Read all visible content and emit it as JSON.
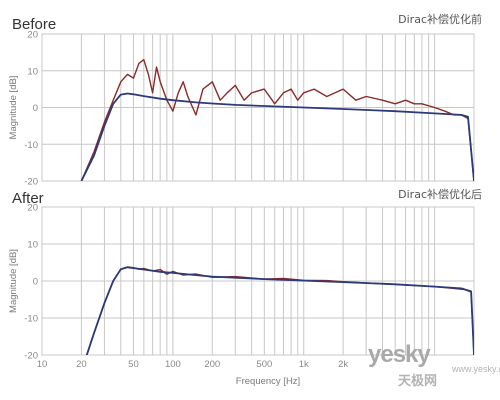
{
  "chart_data": [
    {
      "type": "line",
      "title": "Before",
      "subtitle": "Dirac补偿优化前",
      "xlabel": "",
      "ylabel": "Magnitude [dB]",
      "xscale": "log",
      "xlim": [
        10,
        20000
      ],
      "ylim": [
        -20,
        20
      ],
      "yticks": [
        20,
        10,
        0,
        -10,
        -20
      ],
      "grid": true,
      "series": [
        {
          "color": "#8b2a2a",
          "x": [
            20,
            25,
            30,
            35,
            40,
            45,
            50,
            55,
            60,
            65,
            70,
            75,
            80,
            90,
            100,
            110,
            120,
            130,
            150,
            170,
            200,
            230,
            260,
            300,
            350,
            400,
            500,
            600,
            700,
            800,
            900,
            1000,
            1200,
            1500,
            2000,
            2500,
            3000,
            4000,
            5000,
            6000,
            7000,
            8000,
            10000,
            12000,
            14000,
            16000,
            18000,
            20000
          ],
          "y": [
            -20,
            -12,
            -4,
            2,
            7,
            9,
            8,
            12,
            13,
            9,
            4,
            11,
            7,
            2,
            -1,
            4,
            7,
            3,
            -2,
            5,
            7,
            2,
            4,
            6,
            2,
            4,
            5,
            1,
            4,
            5,
            2,
            4,
            5,
            3,
            5,
            2,
            3,
            2,
            1,
            2,
            1,
            1,
            0,
            -1,
            -2,
            -2,
            -3,
            -20
          ]
        },
        {
          "color": "#2d3a7a",
          "x": [
            20,
            25,
            30,
            35,
            40,
            45,
            50,
            60,
            80,
            100,
            150,
            200,
            300,
            500,
            1000,
            2000,
            5000,
            10000,
            16000,
            18000,
            20000
          ],
          "y": [
            -20,
            -13,
            -5,
            1,
            3.5,
            3.8,
            3.6,
            3.1,
            2.4,
            2,
            1.4,
            1.1,
            0.7,
            0.4,
            0,
            -0.4,
            -1,
            -1.6,
            -2,
            -2.5,
            -20
          ]
        }
      ]
    },
    {
      "type": "line",
      "title": "After",
      "subtitle": "Dirac补偿优化后",
      "xlabel": "Frequency [Hz]",
      "ylabel": "Magnitude [dB]",
      "xscale": "log",
      "xlim": [
        10,
        20000
      ],
      "ylim": [
        -20,
        20
      ],
      "xticks": [
        10,
        20,
        50,
        100,
        200,
        500,
        1000,
        2000
      ],
      "xticklabels": [
        "10",
        "20",
        "50",
        "100",
        "200",
        "500",
        "1k",
        "2k"
      ],
      "yticks": [
        20,
        10,
        0,
        -10,
        -20
      ],
      "grid": true,
      "series": [
        {
          "color": "#8b2a2a",
          "x": [
            22,
            25,
            30,
            35,
            40,
            45,
            50,
            55,
            60,
            70,
            80,
            90,
            100,
            120,
            150,
            200,
            300,
            500,
            700,
            1000,
            1500,
            2000,
            3000,
            5000,
            7000,
            10000,
            14000,
            17000,
            19000,
            20000
          ],
          "y": [
            -20,
            -14,
            -6,
            0,
            3.2,
            3.8,
            3.6,
            3.2,
            3.4,
            2.7,
            3.1,
            1.8,
            2.6,
            1.6,
            1.9,
            1,
            1.2,
            0.5,
            0.7,
            0.2,
            0.1,
            -0.2,
            -0.5,
            -0.9,
            -1.2,
            -1.5,
            -2,
            -2.3,
            -3,
            -20
          ]
        },
        {
          "color": "#2d3a7a",
          "x": [
            22,
            25,
            30,
            35,
            40,
            45,
            50,
            60,
            80,
            100,
            150,
            200,
            300,
            500,
            1000,
            2000,
            5000,
            10000,
            16000,
            19000,
            20000
          ],
          "y": [
            -20,
            -14,
            -6,
            0,
            3.2,
            3.7,
            3.5,
            3.1,
            2.5,
            2.2,
            1.6,
            1.2,
            0.9,
            0.5,
            0.1,
            -0.3,
            -0.9,
            -1.5,
            -2,
            -2.8,
            -20
          ]
        }
      ]
    }
  ],
  "watermark": {
    "main": "yesky",
    "sub": "天极网",
    "url": "www.yesky.com"
  }
}
